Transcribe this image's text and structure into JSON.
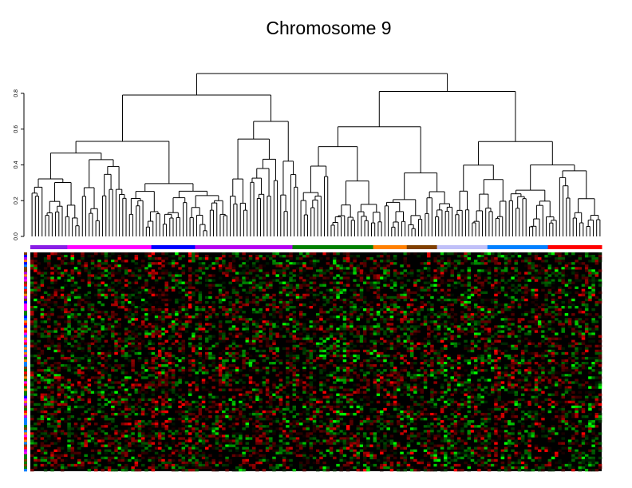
{
  "chart_data": {
    "type": "heatmap",
    "title": "Chromosome 9",
    "dendrogram": {
      "axis_ticks": [
        "0.0",
        "0.2",
        "0.4",
        "0.6",
        "0.8"
      ],
      "tick_values": [
        0,
        0.2,
        0.4,
        0.6,
        0.8
      ],
      "ylim": [
        0,
        0.8
      ],
      "root_height": 0.91,
      "left_branch_height": 0.79,
      "right_branch_height": 0.81,
      "leaves": 170
    },
    "column_groups": [
      {
        "color": "#8a1ee6",
        "count": 11
      },
      {
        "color": "#ff00ff",
        "count": 25
      },
      {
        "color": "#0000ff",
        "count": 13
      },
      {
        "color": "#b400f0",
        "count": 29
      },
      {
        "color": "#008000",
        "count": 24
      },
      {
        "color": "#ff8000",
        "count": 10
      },
      {
        "color": "#804000",
        "count": 9
      },
      {
        "color": "#c0c0f8",
        "count": 15
      },
      {
        "color": "#0080ff",
        "count": 18
      },
      {
        "color": "#ff0000",
        "count": 16
      }
    ],
    "row_group_palette": [
      "#ff0000",
      "#ff00ff",
      "#0080ff",
      "#008000",
      "#0000ff",
      "#ff8000",
      "#804000",
      "#b400f0"
    ],
    "heatmap": {
      "rows": 90,
      "cols": 170,
      "color_scale": {
        "low": "#00ff00",
        "mid": "#000000",
        "high": "#ff0000"
      }
    }
  }
}
